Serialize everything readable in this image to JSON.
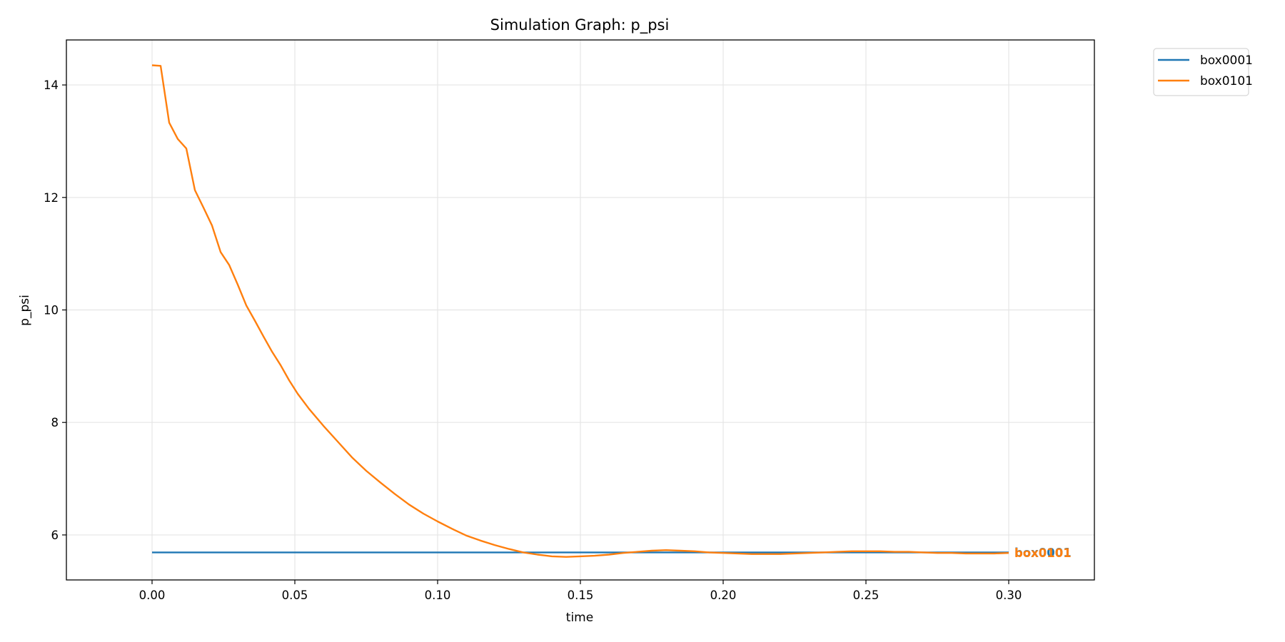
{
  "chart_data": {
    "type": "line",
    "title": "Simulation Graph: p_psi",
    "xlabel": "time",
    "ylabel": "p_psi",
    "xlim": [
      -0.03,
      0.33
    ],
    "ylim": [
      5.2,
      14.8
    ],
    "xticks": [
      "0.00",
      "0.05",
      "0.10",
      "0.15",
      "0.20",
      "0.25",
      "0.30"
    ],
    "yticks": [
      "6",
      "8",
      "10",
      "12",
      "14"
    ],
    "grid": true,
    "legend_position": "outside-top-right",
    "series": [
      {
        "name": "box0001",
        "color": "#1f77b4",
        "x": [
          0.0,
          0.3
        ],
        "y": [
          5.69,
          5.69
        ]
      },
      {
        "name": "box0101",
        "color": "#ff7f0e",
        "x": [
          0.0,
          0.003,
          0.006,
          0.009,
          0.012,
          0.015,
          0.018,
          0.021,
          0.024,
          0.027,
          0.03,
          0.033,
          0.036,
          0.039,
          0.042,
          0.045,
          0.048,
          0.051,
          0.055,
          0.06,
          0.065,
          0.07,
          0.075,
          0.08,
          0.085,
          0.09,
          0.095,
          0.1,
          0.105,
          0.11,
          0.115,
          0.12,
          0.125,
          0.13,
          0.135,
          0.14,
          0.145,
          0.15,
          0.155,
          0.16,
          0.165,
          0.17,
          0.175,
          0.18,
          0.185,
          0.19,
          0.195,
          0.2,
          0.205,
          0.21,
          0.215,
          0.22,
          0.225,
          0.23,
          0.235,
          0.24,
          0.245,
          0.25,
          0.255,
          0.26,
          0.265,
          0.27,
          0.275,
          0.28,
          0.285,
          0.29,
          0.295,
          0.3
        ],
        "y": [
          14.35,
          14.34,
          13.33,
          13.04,
          12.87,
          12.13,
          11.82,
          11.5,
          11.03,
          10.8,
          10.45,
          10.08,
          9.81,
          9.53,
          9.26,
          9.02,
          8.75,
          8.51,
          8.24,
          7.94,
          7.66,
          7.38,
          7.14,
          6.93,
          6.73,
          6.54,
          6.38,
          6.24,
          6.11,
          5.99,
          5.9,
          5.82,
          5.75,
          5.69,
          5.65,
          5.62,
          5.61,
          5.62,
          5.63,
          5.65,
          5.68,
          5.7,
          5.72,
          5.73,
          5.72,
          5.71,
          5.69,
          5.68,
          5.67,
          5.66,
          5.66,
          5.66,
          5.67,
          5.68,
          5.69,
          5.7,
          5.71,
          5.71,
          5.71,
          5.7,
          5.7,
          5.69,
          5.68,
          5.68,
          5.67,
          5.67,
          5.67,
          5.68
        ]
      }
    ],
    "end_labels": [
      {
        "text": "box0001",
        "color": "#1f77b4",
        "series": "box0001"
      },
      {
        "text": "box0101",
        "color": "#ff7f0e",
        "series": "box0101"
      }
    ]
  }
}
